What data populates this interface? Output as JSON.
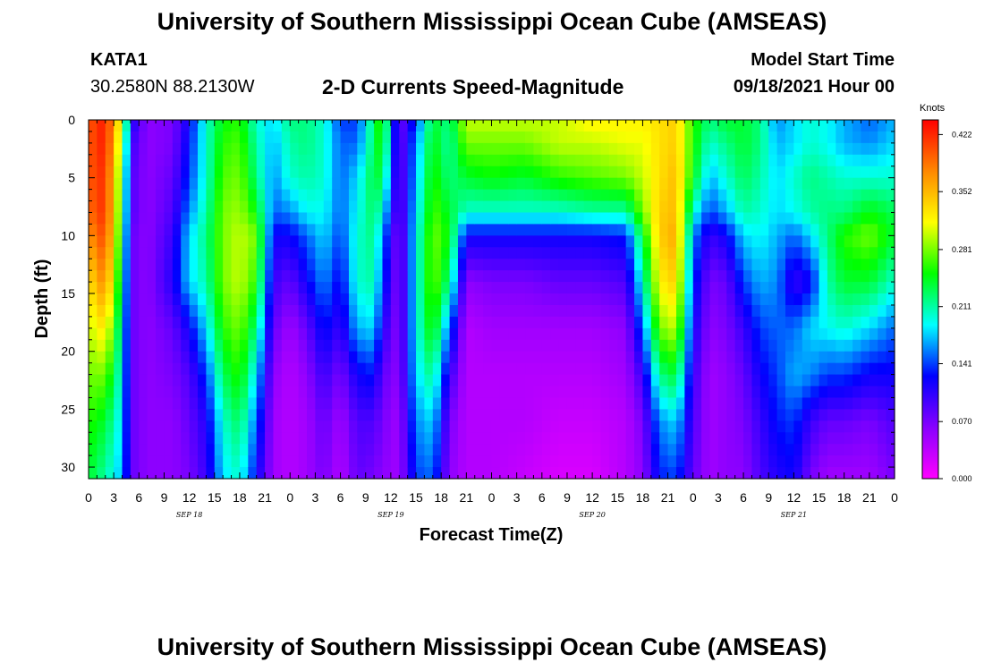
{
  "header": {
    "title": "University of Southern Mississippi Ocean Cube (AMSEAS)",
    "station": "KATA1",
    "coords": "30.2580N  88.2130W",
    "subtitle": "2-D Currents Speed-Magnitude",
    "model_start_label": "Model Start Time",
    "model_start_value": "09/18/2021 Hour 00"
  },
  "footer": {
    "title": "University of Southern Mississippi Ocean Cube (AMSEAS)"
  },
  "chart_data": {
    "type": "heatmap",
    "xlabel": "Forecast Time(Z)",
    "ylabel": "Depth (ft)",
    "x_range_hours": [
      0,
      96
    ],
    "y_range": [
      0,
      31
    ],
    "x_tick_labels": [
      "0",
      "3",
      "6",
      "9",
      "12",
      "15",
      "18",
      "21",
      "0",
      "3",
      "6",
      "9",
      "12",
      "15",
      "18",
      "21",
      "0",
      "3",
      "6",
      "9",
      "12",
      "15",
      "18",
      "21",
      "0",
      "3",
      "6",
      "9",
      "12",
      "15",
      "18",
      "21",
      "0"
    ],
    "y_ticks": [
      0,
      5,
      10,
      15,
      20,
      25,
      30
    ],
    "day_labels": [
      {
        "label": "SEP 18",
        "hour": 12
      },
      {
        "label": "SEP 19",
        "hour": 36
      },
      {
        "label": "SEP 20",
        "hour": 60
      },
      {
        "label": "SEP 21",
        "hour": 84
      }
    ],
    "colorbar": {
      "unit": "Knots",
      "min": 0.0,
      "max": 0.44,
      "tick_labels": [
        "0.422",
        "0.352",
        "0.281",
        "0.211",
        "0.141",
        "0.070",
        "0.000"
      ],
      "tick_values": [
        0.422,
        0.352,
        0.281,
        0.211,
        0.141,
        0.07,
        0.0
      ],
      "colors": [
        "#ff00ff",
        "#8800ff",
        "#0000ff",
        "#00ffff",
        "#00ff00",
        "#ffff00",
        "#ff8800",
        "#ff0000"
      ]
    },
    "depth_profile_ft": [
      0,
      2,
      5,
      8,
      10,
      14,
      18,
      22,
      26,
      31
    ],
    "series": [
      {
        "hour": 0,
        "values": [
          0.4,
          0.4,
          0.4,
          0.39,
          0.37,
          0.33,
          0.3,
          0.28,
          0.26,
          0.24
        ]
      },
      {
        "hour": 2,
        "values": [
          0.43,
          0.43,
          0.42,
          0.42,
          0.41,
          0.38,
          0.33,
          0.28,
          0.24,
          0.21
        ]
      },
      {
        "hour": 4,
        "values": [
          0.3,
          0.28,
          0.26,
          0.25,
          0.24,
          0.22,
          0.2,
          0.19,
          0.18,
          0.17
        ]
      },
      {
        "hour": 5,
        "values": [
          0.12,
          0.1,
          0.09,
          0.09,
          0.08,
          0.08,
          0.08,
          0.08,
          0.08,
          0.08
        ]
      },
      {
        "hour": 7,
        "values": [
          0.06,
          0.06,
          0.06,
          0.06,
          0.06,
          0.06,
          0.06,
          0.06,
          0.06,
          0.06
        ]
      },
      {
        "hour": 10,
        "values": [
          0.07,
          0.07,
          0.08,
          0.09,
          0.1,
          0.11,
          0.08,
          0.07,
          0.06,
          0.06
        ]
      },
      {
        "hour": 12,
        "values": [
          0.12,
          0.13,
          0.14,
          0.16,
          0.18,
          0.18,
          0.12,
          0.09,
          0.08,
          0.07
        ]
      },
      {
        "hour": 14,
        "values": [
          0.2,
          0.2,
          0.2,
          0.21,
          0.22,
          0.21,
          0.18,
          0.14,
          0.11,
          0.1
        ]
      },
      {
        "hour": 16,
        "values": [
          0.25,
          0.26,
          0.27,
          0.28,
          0.28,
          0.28,
          0.26,
          0.23,
          0.2,
          0.18
        ]
      },
      {
        "hour": 18,
        "values": [
          0.26,
          0.27,
          0.28,
          0.29,
          0.3,
          0.3,
          0.28,
          0.26,
          0.23,
          0.2
        ]
      },
      {
        "hour": 20,
        "values": [
          0.2,
          0.21,
          0.22,
          0.25,
          0.28,
          0.26,
          0.22,
          0.18,
          0.15,
          0.12
        ]
      },
      {
        "hour": 22,
        "values": [
          0.18,
          0.17,
          0.16,
          0.15,
          0.12,
          0.1,
          0.08,
          0.06,
          0.05,
          0.05
        ]
      },
      {
        "hour": 24,
        "values": [
          0.22,
          0.21,
          0.2,
          0.16,
          0.12,
          0.08,
          0.05,
          0.04,
          0.04,
          0.04
        ]
      },
      {
        "hour": 26,
        "values": [
          0.22,
          0.22,
          0.21,
          0.19,
          0.15,
          0.12,
          0.08,
          0.06,
          0.05,
          0.05
        ]
      },
      {
        "hour": 28,
        "values": [
          0.2,
          0.2,
          0.2,
          0.19,
          0.18,
          0.16,
          0.13,
          0.1,
          0.08,
          0.07
        ]
      },
      {
        "hour": 30,
        "values": [
          0.14,
          0.15,
          0.15,
          0.15,
          0.14,
          0.12,
          0.1,
          0.07,
          0.05,
          0.04
        ]
      },
      {
        "hour": 32,
        "values": [
          0.14,
          0.15,
          0.18,
          0.19,
          0.2,
          0.2,
          0.17,
          0.12,
          0.09,
          0.08
        ]
      },
      {
        "hour": 34,
        "values": [
          0.23,
          0.23,
          0.24,
          0.23,
          0.22,
          0.21,
          0.18,
          0.13,
          0.09,
          0.07
        ]
      },
      {
        "hour": 35,
        "values": [
          0.27,
          0.26,
          0.23,
          0.19,
          0.16,
          0.14,
          0.11,
          0.08,
          0.07,
          0.06
        ]
      },
      {
        "hour": 37,
        "values": [
          0.07,
          0.07,
          0.07,
          0.07,
          0.06,
          0.06,
          0.06,
          0.06,
          0.05,
          0.05
        ]
      },
      {
        "hour": 39,
        "values": [
          0.14,
          0.16,
          0.17,
          0.18,
          0.19,
          0.19,
          0.19,
          0.18,
          0.16,
          0.14
        ]
      },
      {
        "hour": 41,
        "values": [
          0.24,
          0.25,
          0.26,
          0.27,
          0.28,
          0.28,
          0.26,
          0.22,
          0.18,
          0.15
        ]
      },
      {
        "hour": 43,
        "values": [
          0.22,
          0.21,
          0.22,
          0.24,
          0.25,
          0.22,
          0.15,
          0.1,
          0.07,
          0.06
        ]
      },
      {
        "hour": 45,
        "values": [
          0.3,
          0.28,
          0.24,
          0.2,
          0.12,
          0.06,
          0.04,
          0.04,
          0.04,
          0.04
        ]
      },
      {
        "hour": 48,
        "values": [
          0.3,
          0.28,
          0.25,
          0.2,
          0.12,
          0.07,
          0.05,
          0.04,
          0.04,
          0.04
        ]
      },
      {
        "hour": 52,
        "values": [
          0.3,
          0.28,
          0.24,
          0.2,
          0.12,
          0.07,
          0.05,
          0.04,
          0.04,
          0.03
        ]
      },
      {
        "hour": 56,
        "values": [
          0.3,
          0.3,
          0.26,
          0.2,
          0.12,
          0.08,
          0.05,
          0.04,
          0.03,
          0.02
        ]
      },
      {
        "hour": 60,
        "values": [
          0.32,
          0.3,
          0.27,
          0.21,
          0.12,
          0.08,
          0.05,
          0.04,
          0.03,
          0.02
        ]
      },
      {
        "hour": 64,
        "values": [
          0.32,
          0.31,
          0.28,
          0.21,
          0.13,
          0.09,
          0.06,
          0.05,
          0.04,
          0.04
        ]
      },
      {
        "hour": 66,
        "values": [
          0.32,
          0.31,
          0.3,
          0.28,
          0.24,
          0.2,
          0.15,
          0.1,
          0.07,
          0.06
        ]
      },
      {
        "hour": 68,
        "values": [
          0.33,
          0.33,
          0.33,
          0.34,
          0.34,
          0.32,
          0.28,
          0.22,
          0.16,
          0.13
        ]
      },
      {
        "hour": 70,
        "values": [
          0.34,
          0.34,
          0.35,
          0.35,
          0.36,
          0.34,
          0.3,
          0.24,
          0.18,
          0.14
        ]
      },
      {
        "hour": 72,
        "values": [
          0.26,
          0.26,
          0.25,
          0.2,
          0.16,
          0.14,
          0.12,
          0.1,
          0.09,
          0.08
        ]
      },
      {
        "hour": 74,
        "values": [
          0.22,
          0.2,
          0.17,
          0.14,
          0.1,
          0.07,
          0.06,
          0.05,
          0.05,
          0.05
        ]
      },
      {
        "hour": 76,
        "values": [
          0.24,
          0.22,
          0.2,
          0.17,
          0.12,
          0.08,
          0.07,
          0.06,
          0.06,
          0.06
        ]
      },
      {
        "hour": 78,
        "values": [
          0.24,
          0.24,
          0.23,
          0.21,
          0.18,
          0.14,
          0.1,
          0.08,
          0.07,
          0.06
        ]
      },
      {
        "hour": 80,
        "values": [
          0.22,
          0.22,
          0.21,
          0.2,
          0.19,
          0.17,
          0.14,
          0.12,
          0.1,
          0.09
        ]
      },
      {
        "hour": 82,
        "values": [
          0.16,
          0.17,
          0.18,
          0.18,
          0.17,
          0.16,
          0.15,
          0.14,
          0.13,
          0.11
        ]
      },
      {
        "hour": 84,
        "values": [
          0.18,
          0.18,
          0.2,
          0.19,
          0.15,
          0.1,
          0.15,
          0.17,
          0.14,
          0.12
        ]
      },
      {
        "hour": 86,
        "values": [
          0.2,
          0.2,
          0.22,
          0.21,
          0.18,
          0.12,
          0.18,
          0.16,
          0.1,
          0.07
        ]
      },
      {
        "hour": 88,
        "values": [
          0.19,
          0.19,
          0.21,
          0.22,
          0.22,
          0.21,
          0.19,
          0.14,
          0.08,
          0.05
        ]
      },
      {
        "hour": 90,
        "values": [
          0.17,
          0.17,
          0.2,
          0.22,
          0.26,
          0.24,
          0.2,
          0.14,
          0.08,
          0.05
        ]
      },
      {
        "hour": 93,
        "values": [
          0.15,
          0.16,
          0.2,
          0.25,
          0.28,
          0.24,
          0.18,
          0.12,
          0.07,
          0.05
        ]
      },
      {
        "hour": 96,
        "values": [
          0.17,
          0.18,
          0.2,
          0.23,
          0.24,
          0.2,
          0.15,
          0.12,
          0.09,
          0.07
        ]
      }
    ]
  }
}
